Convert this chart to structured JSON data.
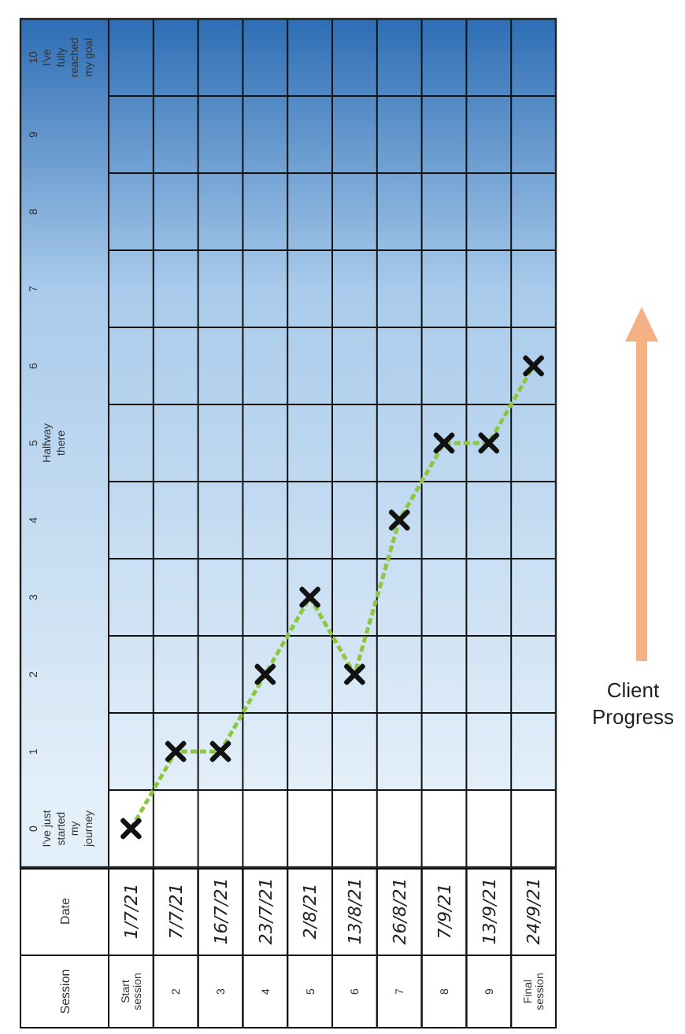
{
  "chart_data": {
    "type": "line",
    "categories": [
      "Start session",
      "2",
      "3",
      "4",
      "5",
      "6",
      "7",
      "8",
      "9",
      "Final session"
    ],
    "series": [
      {
        "color": "#8dc63f",
        "values": [
          0,
          1,
          1,
          2,
          3,
          2,
          4,
          5,
          5,
          6
        ]
      }
    ],
    "ylim": [
      -0.5,
      10.5
    ],
    "yticks": [
      {
        "value": 0,
        "label": "0 I've just started my journey"
      },
      1,
      2,
      3,
      4,
      {
        "value": 5,
        "label": "5 Halfway there"
      },
      6,
      7,
      8,
      9,
      {
        "value": 10,
        "label": "10 I've fully reached my goal"
      }
    ],
    "grid": true,
    "marker": "cross",
    "line_style": "dashed",
    "annotations": [
      "Session",
      "Date",
      "1/7/21",
      "7/7/21",
      "16/7/21",
      "23/7/21",
      "2/8/21",
      "13/8/21",
      "26/8/21",
      "7/9/21",
      "13/9/21",
      "24/9/21",
      "Client Progress"
    ]
  }
}
